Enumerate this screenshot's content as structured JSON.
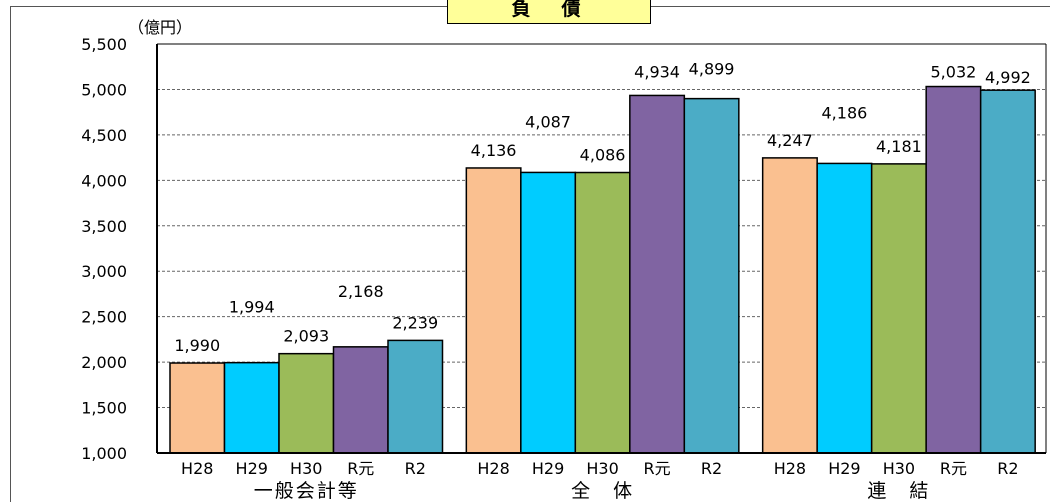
{
  "chart_data": {
    "type": "bar",
    "title": "負　債",
    "unit": "（億円）",
    "ylim": [
      1000,
      5500
    ],
    "yticks": [
      "1,000",
      "1,500",
      "2,000",
      "2,500",
      "3,000",
      "3,500",
      "4,000",
      "4,500",
      "5,000",
      "5,500"
    ],
    "grid": true,
    "groups": [
      {
        "name": "一般会計等",
        "categories": [
          "H28",
          "H29",
          "H30",
          "R元",
          "R2"
        ],
        "values": [
          1990,
          1994,
          2093,
          2168,
          2239
        ],
        "labels": [
          "1,990",
          "1,994",
          "2,093",
          "2,168",
          "2,239"
        ]
      },
      {
        "name": "全　体",
        "categories": [
          "H28",
          "H29",
          "H30",
          "R元",
          "R2"
        ],
        "values": [
          4136,
          4087,
          4086,
          4934,
          4899
        ],
        "labels": [
          "4,136",
          "4,087",
          "4,086",
          "4,934",
          "4,899"
        ]
      },
      {
        "name": "連　結",
        "categories": [
          "H28",
          "H29",
          "H30",
          "R元",
          "R2"
        ],
        "values": [
          4247,
          4186,
          4181,
          5032,
          4992
        ],
        "labels": [
          "4,247",
          "4,186",
          "4,181",
          "5,032",
          "4,992"
        ]
      }
    ],
    "colors": [
      "#fac090",
      "#00ccff",
      "#9bbb59",
      "#8064a2",
      "#4bacc6"
    ]
  }
}
